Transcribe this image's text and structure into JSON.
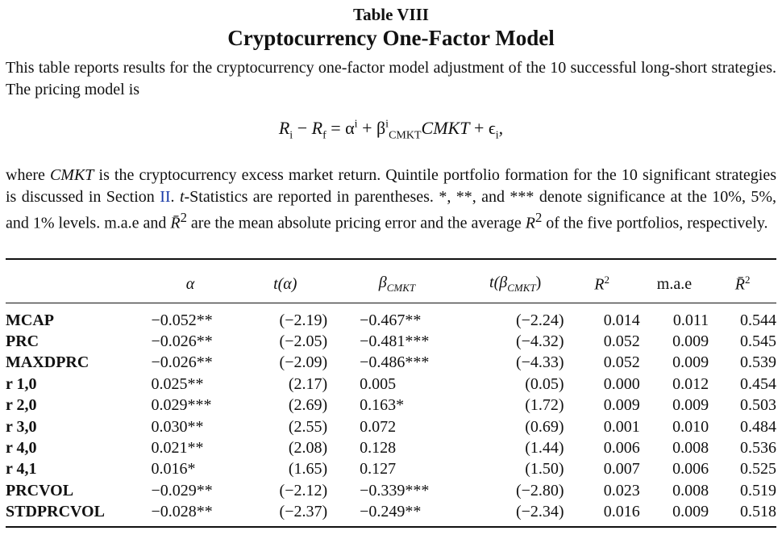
{
  "table_number": "Table VIII",
  "table_title": "Cryptocurrency One-Factor Model",
  "intro_text": "This table reports results for the cryptocurrency one-factor model adjustment of the 10 successful long-short strategies. The pricing model is",
  "equation": {
    "lhs": "R",
    "lhs_sub": "i",
    "minus": " − ",
    "rf": "R",
    "rf_sub": "f",
    "eq": " = α",
    "alpha_sup": "i",
    "plus": " + β",
    "beta_sup": "i",
    "beta_sub": "CMKT",
    "factor": "CMKT",
    "eps": " + ϵ",
    "eps_sub": "i",
    "tail": ","
  },
  "desc": {
    "part1": "where ",
    "cmkt": "CMKT",
    "part2": " is the cryptocurrency excess market return. Quintile portfolio formation for the 10 significant strategies is discussed in Section ",
    "section_link": "II",
    "part3": ". ",
    "t_italic": "t",
    "part4": "-Statistics are reported in parentheses. *, **, and *** denote significance at the 10%, 5%, and 1% levels. m.a.e and ",
    "rbar": "R̄",
    "rbar_sup": "2",
    "part5": " are the mean absolute pricing error and the average ",
    "r2": "R",
    "r2_sup": "2",
    "part6": " of the five portfolios, respectively."
  },
  "headers": {
    "alpha": "α",
    "t_alpha": "t(α)",
    "beta": "β",
    "beta_sub": "CMKT",
    "t_beta_open": "t(β",
    "t_beta_sub": "CMKT",
    "t_beta_close": ")",
    "r2": "R",
    "r2_sup": "2",
    "mae": "m.a.e",
    "rbar": "R̄",
    "rbar_sup": "2"
  },
  "rows": [
    {
      "name": "MCAP",
      "alpha": "−0.052**",
      "t_alpha": "(−2.19)",
      "beta": "−0.467**",
      "t_beta": "(−2.24)",
      "r2": "0.014",
      "mae": "0.011",
      "rbar2": "0.544"
    },
    {
      "name": "PRC",
      "alpha": "−0.026**",
      "t_alpha": "(−2.05)",
      "beta": "−0.481***",
      "t_beta": "(−4.32)",
      "r2": "0.052",
      "mae": "0.009",
      "rbar2": "0.545"
    },
    {
      "name": "MAXDPRC",
      "alpha": "−0.026**",
      "t_alpha": "(−2.09)",
      "beta": "−0.486***",
      "t_beta": "(−4.33)",
      "r2": "0.052",
      "mae": "0.009",
      "rbar2": "0.539"
    },
    {
      "name": "r 1,0",
      "alpha": "0.025**",
      "t_alpha": "(2.17)",
      "beta": "0.005",
      "t_beta": "(0.05)",
      "r2": "0.000",
      "mae": "0.012",
      "rbar2": "0.454"
    },
    {
      "name": "r 2,0",
      "alpha": "0.029***",
      "t_alpha": "(2.69)",
      "beta": "0.163*",
      "t_beta": "(1.72)",
      "r2": "0.009",
      "mae": "0.009",
      "rbar2": "0.503"
    },
    {
      "name": "r 3,0",
      "alpha": "0.030**",
      "t_alpha": "(2.55)",
      "beta": "0.072",
      "t_beta": "(0.69)",
      "r2": "0.001",
      "mae": "0.010",
      "rbar2": "0.484"
    },
    {
      "name": "r 4,0",
      "alpha": "0.021**",
      "t_alpha": "(2.08)",
      "beta": "0.128",
      "t_beta": "(1.44)",
      "r2": "0.006",
      "mae": "0.008",
      "rbar2": "0.536"
    },
    {
      "name": "r 4,1",
      "alpha": "0.016*",
      "t_alpha": "(1.65)",
      "beta": "0.127",
      "t_beta": "(1.50)",
      "r2": "0.007",
      "mae": "0.006",
      "rbar2": "0.525"
    },
    {
      "name": "PRCVOL",
      "alpha": "−0.029**",
      "t_alpha": "(−2.12)",
      "beta": "−0.339***",
      "t_beta": "(−2.80)",
      "r2": "0.023",
      "mae": "0.008",
      "rbar2": "0.519"
    },
    {
      "name": "STDPRCVOL",
      "alpha": "−0.028**",
      "t_alpha": "(−2.37)",
      "beta": "−0.249**",
      "t_beta": "(−2.34)",
      "r2": "0.016",
      "mae": "0.009",
      "rbar2": "0.518"
    }
  ],
  "colors": {
    "text": "#111111",
    "link": "#1a3ba8"
  }
}
